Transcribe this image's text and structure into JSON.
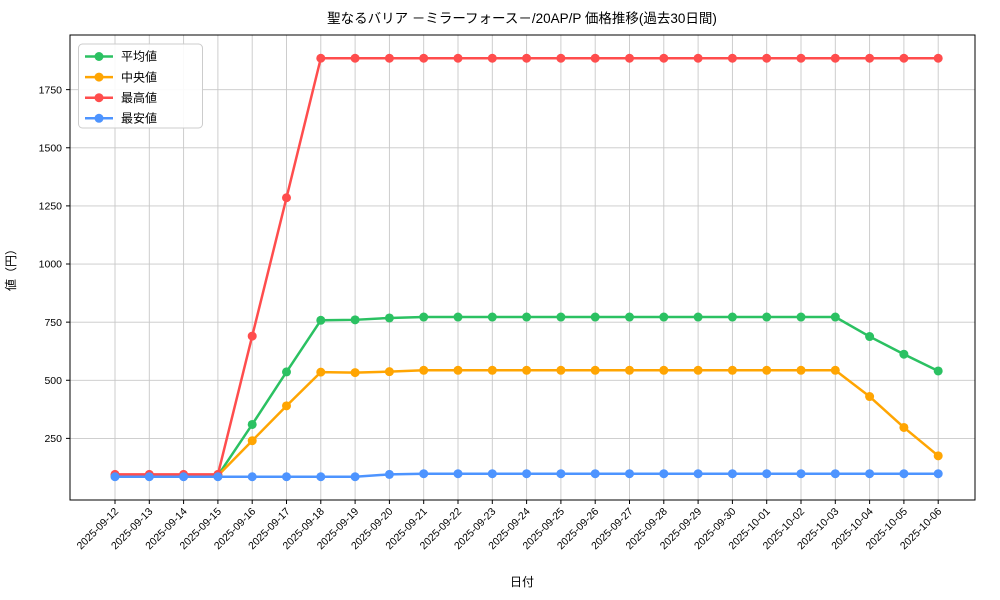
{
  "chart_data": {
    "type": "line",
    "title": "聖なるバリア －ミラーフォース－/20AP/P 価格推移(過去30日間)",
    "xlabel": "日付",
    "ylabel": "値（円）",
    "grid": true,
    "legend_position": "upper-left",
    "ylim": [
      -15,
      1985
    ],
    "yticks": [
      250,
      500,
      750,
      1000,
      1250,
      1500,
      1750
    ],
    "x": [
      "2025-09-12",
      "2025-09-13",
      "2025-09-14",
      "2025-09-15",
      "2025-09-16",
      "2025-09-17",
      "2025-09-18",
      "2025-09-19",
      "2025-09-20",
      "2025-09-21",
      "2025-09-22",
      "2025-09-23",
      "2025-09-24",
      "2025-09-25",
      "2025-09-26",
      "2025-09-27",
      "2025-09-28",
      "2025-09-29",
      "2025-09-30",
      "2025-10-01",
      "2025-10-02",
      "2025-10-03",
      "2025-10-04",
      "2025-10-05",
      "2025-10-06"
    ],
    "series": [
      {
        "id": "avg",
        "name": "平均値",
        "color": "#2bc162",
        "values": [
          90,
          90,
          90,
          90,
          310,
          536,
          758,
          760,
          768,
          772,
          772,
          772,
          772,
          772,
          772,
          772,
          772,
          772,
          772,
          772,
          772,
          772,
          688,
          612,
          540
        ]
      },
      {
        "id": "median",
        "name": "中央値",
        "color": "#ffa502",
        "values": [
          90,
          90,
          90,
          90,
          240,
          390,
          535,
          533,
          537,
          543,
          543,
          543,
          543,
          543,
          543,
          543,
          543,
          543,
          543,
          543,
          543,
          543,
          430,
          297,
          175
        ]
      },
      {
        "id": "max",
        "name": "最高値",
        "color": "#ff4d4d",
        "values": [
          95,
          95,
          95,
          95,
          690,
          1285,
          1885,
          1885,
          1885,
          1885,
          1885,
          1885,
          1885,
          1885,
          1885,
          1885,
          1885,
          1885,
          1885,
          1885,
          1885,
          1885,
          1885,
          1885,
          1885
        ]
      },
      {
        "id": "min",
        "name": "最安値",
        "color": "#4d94ff",
        "values": [
          85,
          85,
          85,
          85,
          85,
          85,
          85,
          85,
          95,
          98,
          98,
          98,
          98,
          98,
          98,
          98,
          98,
          98,
          98,
          98,
          98,
          98,
          98,
          98,
          98
        ]
      }
    ],
    "colors": {
      "grid": "#c8c8c8",
      "spine": "#000000",
      "legend_border": "#cccccc",
      "background": "#ffffff"
    }
  }
}
